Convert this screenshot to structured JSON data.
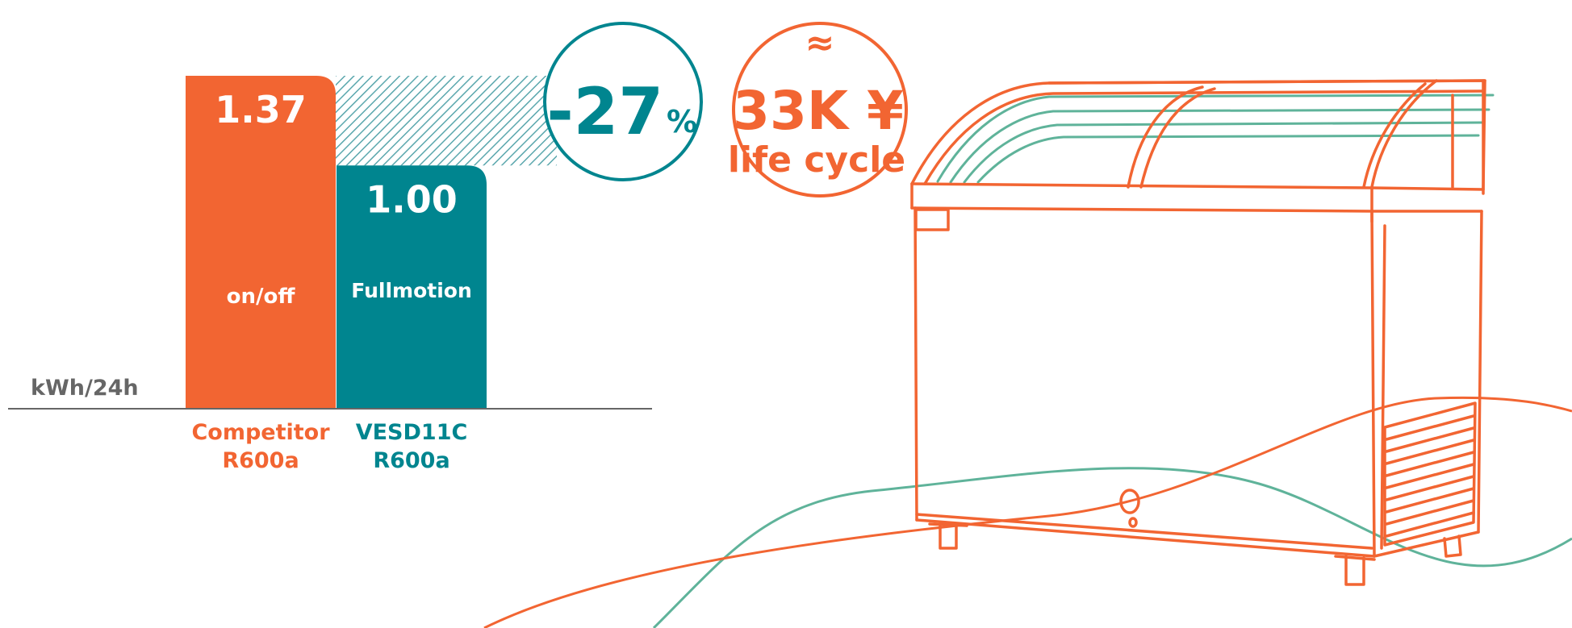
{
  "colors": {
    "competitor": "#f26532",
    "product": "#00858f",
    "axis": "#666666",
    "wave_green": "#5fb39a",
    "hatch": "#5aa7ad",
    "white": "#ffffff"
  },
  "chart_data": {
    "type": "bar",
    "ylabel": "kWh/24h",
    "categories": [
      "Competitor\nR600a",
      "VESD11C\nR600a"
    ],
    "values": [
      1.37,
      1.0
    ],
    "value_labels": [
      "1.37",
      "1.00"
    ],
    "bar_tags": [
      "on/off",
      "Fullmotion"
    ],
    "cat_lines": [
      [
        "Competitor",
        "R600a"
      ],
      [
        "VESD11C",
        "R600a"
      ]
    ],
    "grid": false,
    "legend": "none"
  },
  "callouts": {
    "savings_number": "-27",
    "savings_unit": "%",
    "approx_symbol": "≈",
    "cost_value": "33K ¥",
    "cost_caption": "life cycle"
  },
  "icons": {
    "freezer": "chest-freezer-illustration"
  }
}
